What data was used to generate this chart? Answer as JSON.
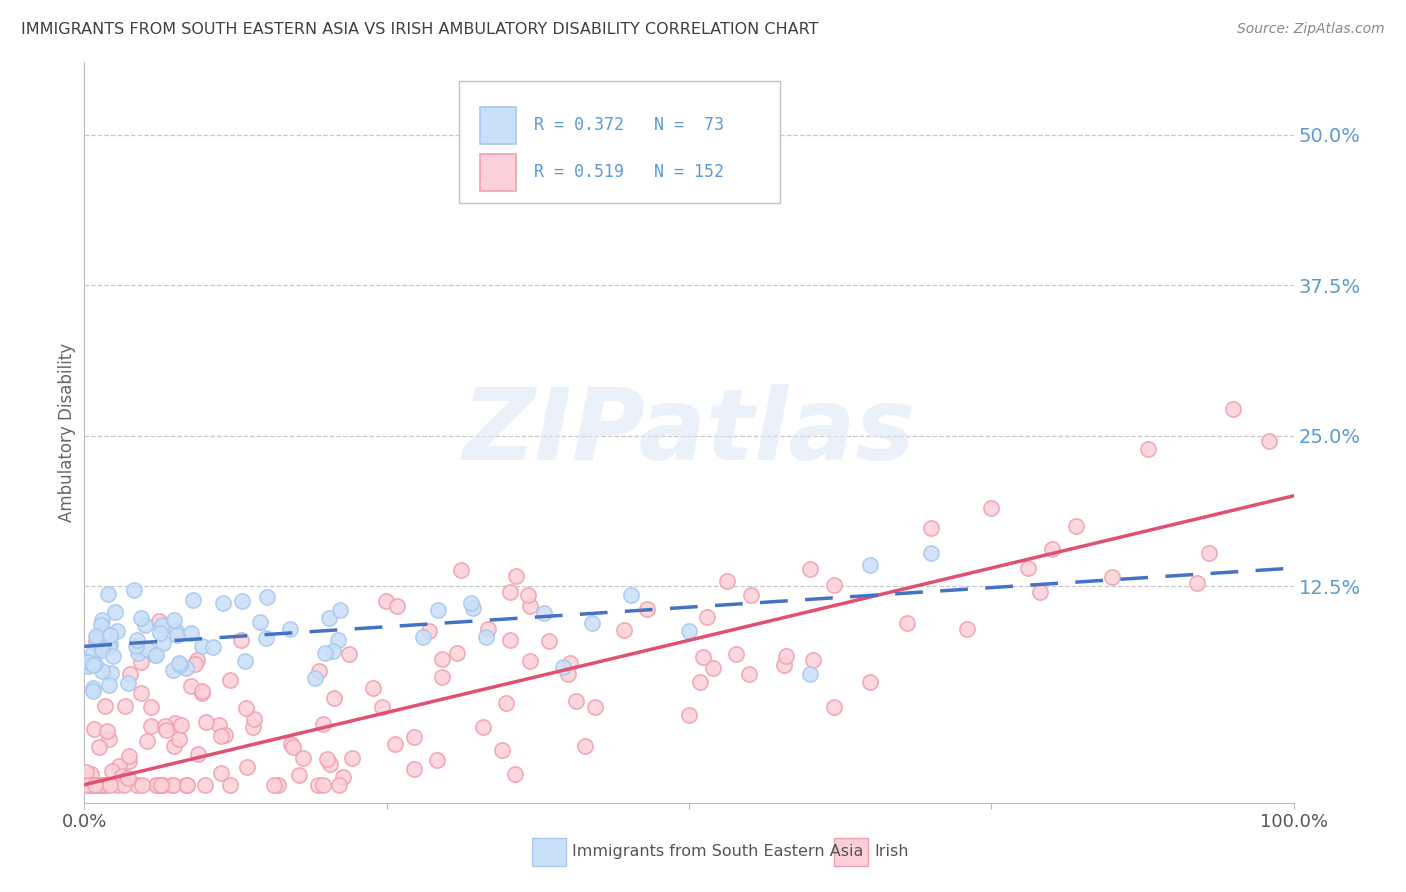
{
  "title": "IMMIGRANTS FROM SOUTH EASTERN ASIA VS IRISH AMBULATORY DISABILITY CORRELATION CHART",
  "source": "Source: ZipAtlas.com",
  "ylabel": "Ambulatory Disability",
  "right_ytick_labels": [
    "50.0%",
    "37.5%",
    "25.0%",
    "12.5%"
  ],
  "right_ytick_values": [
    0.5,
    0.375,
    0.25,
    0.125
  ],
  "legend_blue_r": "R = 0.372",
  "legend_blue_n": "N =  73",
  "legend_pink_r": "R = 0.519",
  "legend_pink_n": "N = 152",
  "legend_label_blue": "Immigrants from South Eastern Asia",
  "legend_label_pink": "Irish",
  "blue_color": "#a8c8f0",
  "pink_color": "#f0a0b0",
  "blue_fill": "#c8dff8",
  "pink_fill": "#fcd0d8",
  "blue_line_color": "#4472c4",
  "pink_line_color": "#e05070",
  "watermark": "ZIPatlas",
  "title_color": "#404040",
  "right_label_color": "#5b9bd5",
  "background_color": "#ffffff",
  "grid_color": "#c8c8c8",
  "xmin": 0.0,
  "xmax": 1.0,
  "ymin": -0.055,
  "ymax": 0.56,
  "blue_slope": 0.065,
  "blue_intercept": 0.075,
  "pink_slope": 0.24,
  "pink_intercept": -0.04
}
